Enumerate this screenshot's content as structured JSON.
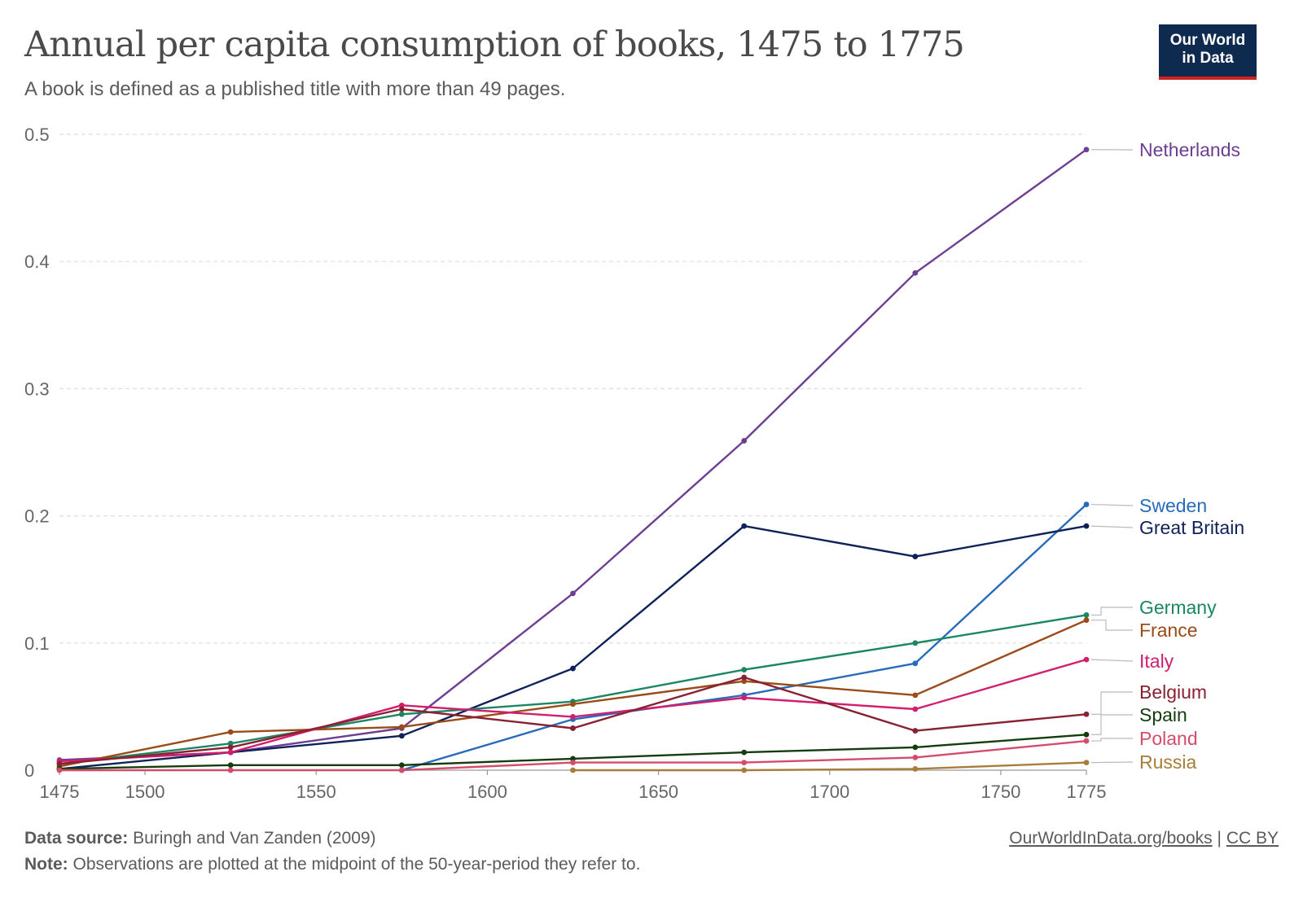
{
  "header": {
    "title": "Annual per capita consumption of books, 1475 to 1775",
    "subtitle": "A book is defined as a published title with more than 49 pages.",
    "logo_line1": "Our World",
    "logo_line2": "in Data"
  },
  "footer": {
    "source_label": "Data source:",
    "source_text": "Buringh and Van Zanden (2009)",
    "note_label": "Note:",
    "note_text": "Observations are plotted at the midpoint of the 50-year-period they refer to.",
    "link_text": "OurWorldInData.org/books",
    "separator": "|",
    "license_text": "CC BY"
  },
  "chart_data": {
    "type": "line",
    "title": "Annual per capita consumption of books, 1475 to 1775",
    "subtitle": "A book is defined as a published title with more than 49 pages.",
    "xlabel": "",
    "ylabel": "",
    "xlim": [
      1475,
      1775
    ],
    "ylim": [
      0,
      0.5
    ],
    "x_ticks": [
      1475,
      1500,
      1550,
      1600,
      1650,
      1700,
      1750,
      1775
    ],
    "y_ticks": [
      0,
      0.1,
      0.2,
      0.3,
      0.4,
      0.5
    ],
    "y_tick_labels": [
      "0",
      "0.1",
      "0.2",
      "0.3",
      "0.4",
      "0.5"
    ],
    "grid": "horizontal dashed",
    "legend": "labels at line ends (right)",
    "series": [
      {
        "name": "Netherlands",
        "color": "#6d3e91",
        "points": [
          [
            1475,
            0.008
          ],
          [
            1525,
            0.014
          ],
          [
            1575,
            0.033
          ],
          [
            1625,
            0.139
          ],
          [
            1675,
            0.259
          ],
          [
            1725,
            0.391
          ],
          [
            1775,
            0.488
          ]
        ]
      },
      {
        "name": "Sweden",
        "color": "#286bbb",
        "points": [
          [
            1575,
            0.0
          ],
          [
            1625,
            0.04
          ],
          [
            1675,
            0.059
          ],
          [
            1725,
            0.084
          ],
          [
            1775,
            0.209
          ]
        ]
      },
      {
        "name": "Great Britain",
        "color": "#0f2159",
        "points": [
          [
            1475,
            0.001
          ],
          [
            1525,
            0.014
          ],
          [
            1575,
            0.027
          ],
          [
            1625,
            0.08
          ],
          [
            1675,
            0.192
          ],
          [
            1725,
            0.168
          ],
          [
            1775,
            0.192
          ]
        ]
      },
      {
        "name": "Germany",
        "color": "#1a8662",
        "points": [
          [
            1475,
            0.005
          ],
          [
            1525,
            0.021
          ],
          [
            1575,
            0.044
          ],
          [
            1625,
            0.054
          ],
          [
            1675,
            0.079
          ],
          [
            1725,
            0.1
          ],
          [
            1775,
            0.122
          ]
        ]
      },
      {
        "name": "France",
        "color": "#9a4b17",
        "points": [
          [
            1475,
            0.003
          ],
          [
            1525,
            0.03
          ],
          [
            1575,
            0.034
          ],
          [
            1625,
            0.052
          ],
          [
            1675,
            0.07
          ],
          [
            1725,
            0.059
          ],
          [
            1775,
            0.118
          ]
        ]
      },
      {
        "name": "Italy",
        "color": "#d11e6e",
        "points": [
          [
            1475,
            0.007
          ],
          [
            1525,
            0.014
          ],
          [
            1575,
            0.051
          ],
          [
            1625,
            0.042
          ],
          [
            1675,
            0.057
          ],
          [
            1725,
            0.048
          ],
          [
            1775,
            0.087
          ]
        ]
      },
      {
        "name": "Belgium",
        "color": "#882233",
        "points": [
          [
            1475,
            0.005
          ],
          [
            1525,
            0.018
          ],
          [
            1575,
            0.048
          ],
          [
            1625,
            0.033
          ],
          [
            1675,
            0.073
          ],
          [
            1725,
            0.031
          ],
          [
            1775,
            0.044
          ]
        ]
      },
      {
        "name": "Spain",
        "color": "#143d0f",
        "points": [
          [
            1475,
            0.001
          ],
          [
            1525,
            0.004
          ],
          [
            1575,
            0.004
          ],
          [
            1625,
            0.009
          ],
          [
            1675,
            0.014
          ],
          [
            1725,
            0.018
          ],
          [
            1775,
            0.028
          ]
        ]
      },
      {
        "name": "Poland",
        "color": "#d44b6b",
        "points": [
          [
            1475,
            0.0
          ],
          [
            1525,
            0.0
          ],
          [
            1575,
            0.0
          ],
          [
            1625,
            0.006
          ],
          [
            1675,
            0.006
          ],
          [
            1725,
            0.01
          ],
          [
            1775,
            0.023
          ]
        ]
      },
      {
        "name": "Russia",
        "color": "#a87d39",
        "points": [
          [
            1625,
            0.0
          ],
          [
            1675,
            0.0
          ],
          [
            1725,
            0.001
          ],
          [
            1775,
            0.006
          ]
        ]
      }
    ]
  }
}
